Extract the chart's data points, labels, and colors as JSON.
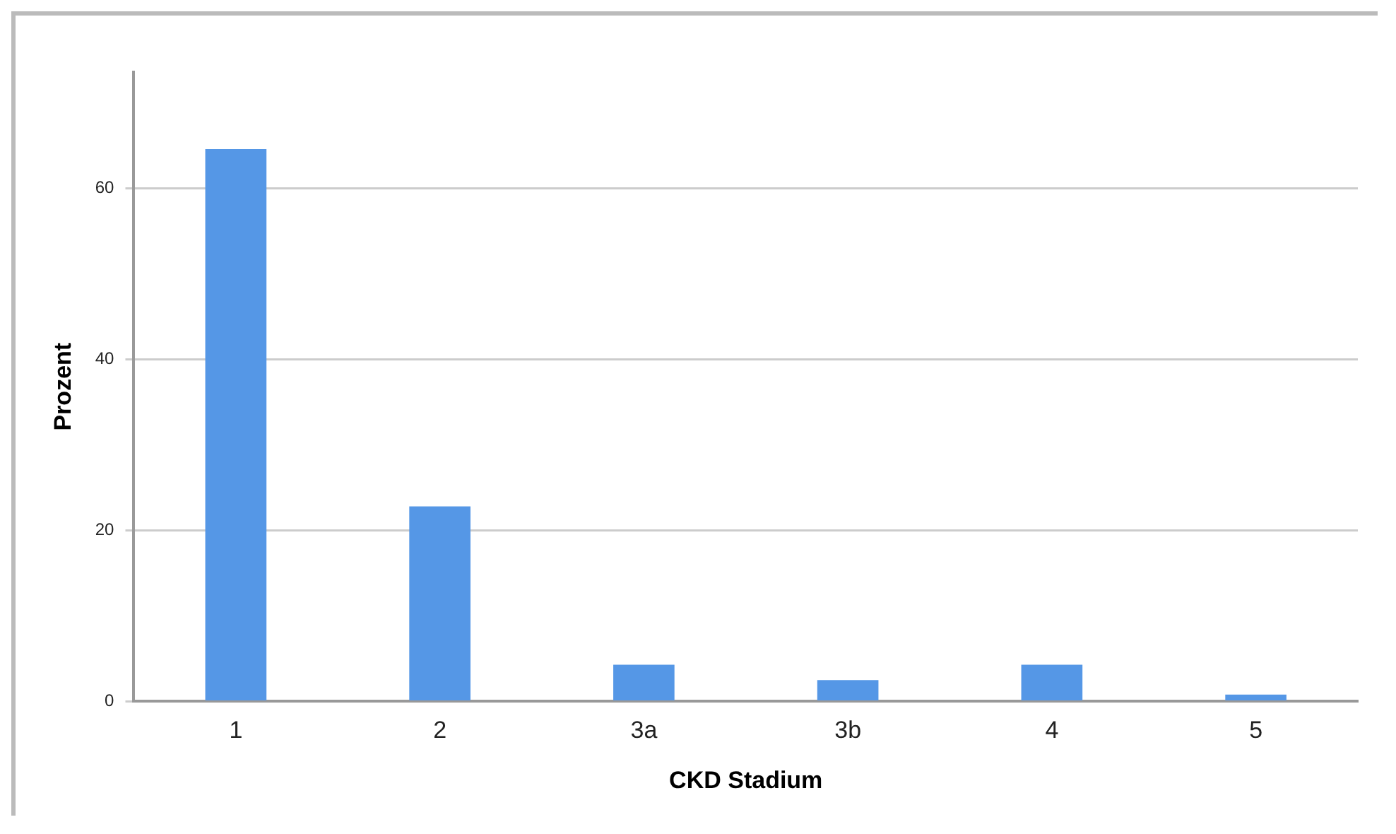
{
  "chart_data": {
    "type": "bar",
    "xlabel": "CKD Stadium",
    "ylabel": "Prozent",
    "categories": [
      "1",
      "2",
      "3a",
      "3b",
      "4",
      "5"
    ],
    "values": [
      64.6,
      22.8,
      4.3,
      2.5,
      4.3,
      0.8
    ],
    "color": "#5597e6",
    "ylim": [
      0,
      73.6
    ],
    "yticks": [
      0,
      20,
      40,
      60
    ],
    "grid": "y",
    "legend": false
  }
}
